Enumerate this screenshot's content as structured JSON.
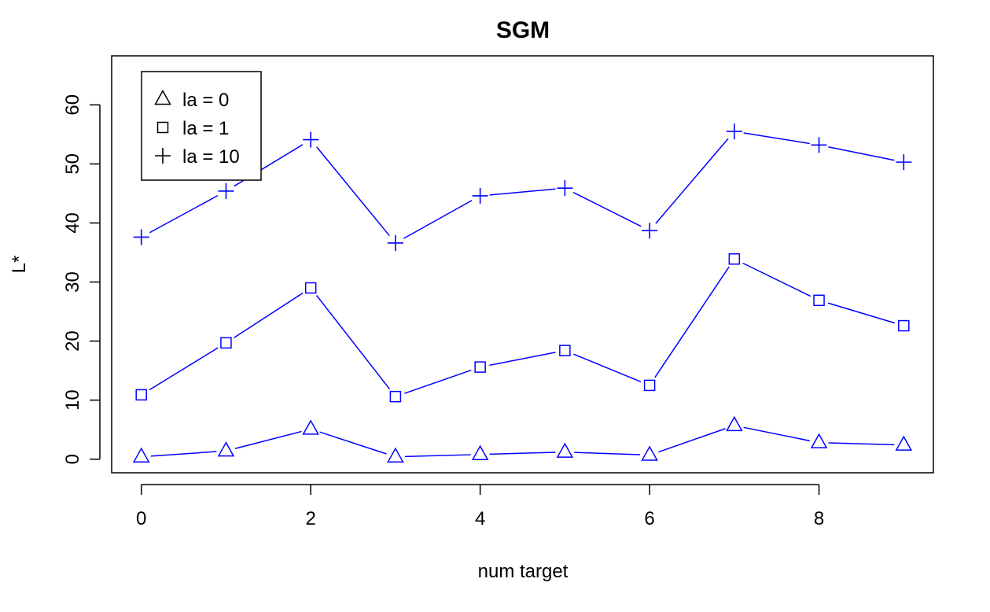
{
  "chart_data": {
    "type": "line",
    "title": "SGM",
    "xlabel": "num target",
    "ylabel": "L*",
    "x": [
      0,
      1,
      2,
      3,
      4,
      5,
      6,
      7,
      8,
      9
    ],
    "xlim": [
      -0.35,
      9.35
    ],
    "ylim": [
      -2.3,
      68.3
    ],
    "xticks": [
      0,
      2,
      4,
      6,
      8
    ],
    "yticks": [
      0,
      10,
      20,
      30,
      40,
      50,
      60
    ],
    "grid": false,
    "legend_position": "top-left",
    "color": "#0000ff",
    "series": [
      {
        "name": "la = 0",
        "marker": "triangle",
        "values": [
          0.4,
          1.4,
          5.1,
          0.4,
          0.8,
          1.2,
          0.7,
          5.7,
          2.8,
          2.4
        ]
      },
      {
        "name": "la = 1",
        "marker": "square",
        "values": [
          10.9,
          19.7,
          29.0,
          10.6,
          15.6,
          18.4,
          12.5,
          33.9,
          26.9,
          22.6
        ]
      },
      {
        "name": "la = 10",
        "marker": "plus",
        "values": [
          37.6,
          45.4,
          54.1,
          36.6,
          44.6,
          45.9,
          38.7,
          55.5,
          53.2,
          50.3
        ]
      }
    ]
  }
}
